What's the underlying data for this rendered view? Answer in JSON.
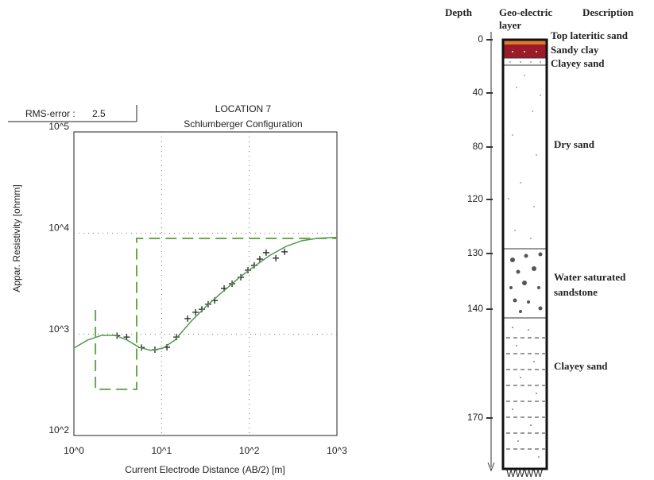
{
  "chart_data": {
    "type": "line",
    "title": "LOCATION 7",
    "subtitle": "Schlumberger Configuration",
    "rms_label": "RMS-error :",
    "rms_value": 2.5,
    "x_label": "Current Electrode Distance (AB/2) [m]",
    "y_label": "Appar. Resistivity [ohmm]",
    "xscale": "log",
    "yscale": "log",
    "grid": true,
    "xlim": [
      1,
      1000
    ],
    "ylim": [
      100,
      100000
    ],
    "xticks": [
      {
        "value": 1,
        "label": "10^0"
      },
      {
        "value": 10,
        "label": "10^1"
      },
      {
        "value": 100,
        "label": "10^2"
      },
      {
        "value": 1000,
        "label": "10^3"
      }
    ],
    "yticks": [
      {
        "value": 100,
        "label": "10^2"
      },
      {
        "value": 1000,
        "label": "10^3"
      },
      {
        "value": 10000,
        "label": "10^4"
      },
      {
        "value": 100000,
        "label": "10^5"
      }
    ],
    "series": [
      {
        "color": "#222222",
        "marker": "+",
        "x": [
          3.1,
          4.0,
          5.9,
          8.4,
          11.5,
          14.8,
          19.8,
          24.4,
          28.8,
          34,
          40.3,
          51.7,
          63.7,
          80.1,
          96.7,
          114,
          132,
          156,
          201,
          253
        ],
        "values": [
          970,
          940,
          740,
          705,
          745,
          940,
          1430,
          1650,
          1770,
          1980,
          2160,
          2840,
          3160,
          3660,
          4300,
          4800,
          5540,
          6410,
          5650,
          6530
        ]
      },
      {
        "color": "#4f9a4f",
        "line": "solid",
        "x": [
          1,
          1.43,
          2.08,
          2.96,
          4.05,
          5.53,
          7.57,
          10.4,
          14.2,
          21.5,
          32.7,
          49.6,
          75.3,
          114,
          174,
          264,
          400,
          607,
          1000
        ],
        "values": [
          731,
          877,
          977,
          977,
          877,
          745,
          693,
          731,
          877,
          1330,
          1910,
          2630,
          3580,
          4700,
          6060,
          7410,
          8420,
          8900,
          9080
        ]
      },
      {
        "color": "#6aa84f",
        "line": "dashed",
        "x": [
          1.76,
          1.76,
          5.2,
          5.2,
          1000
        ],
        "values": [
          1740,
          286,
          286,
          8870,
          8870
        ]
      }
    ]
  },
  "borehole": {
    "headers": {
      "depth": "Depth",
      "layer": [
        "Geo-electric",
        "layer"
      ],
      "description": "Description"
    },
    "depth_ticks": [
      0,
      40,
      80,
      120,
      130,
      140,
      170
    ],
    "layers": [
      [
        "Top lateritic sand"
      ],
      [
        "Sandy clay"
      ],
      [
        "Clayey sand"
      ],
      [
        "Dry sand"
      ],
      [
        "Water saturated",
        "sandstone"
      ],
      [
        "Clayey sand"
      ]
    ],
    "base_label": "WWWW"
  }
}
